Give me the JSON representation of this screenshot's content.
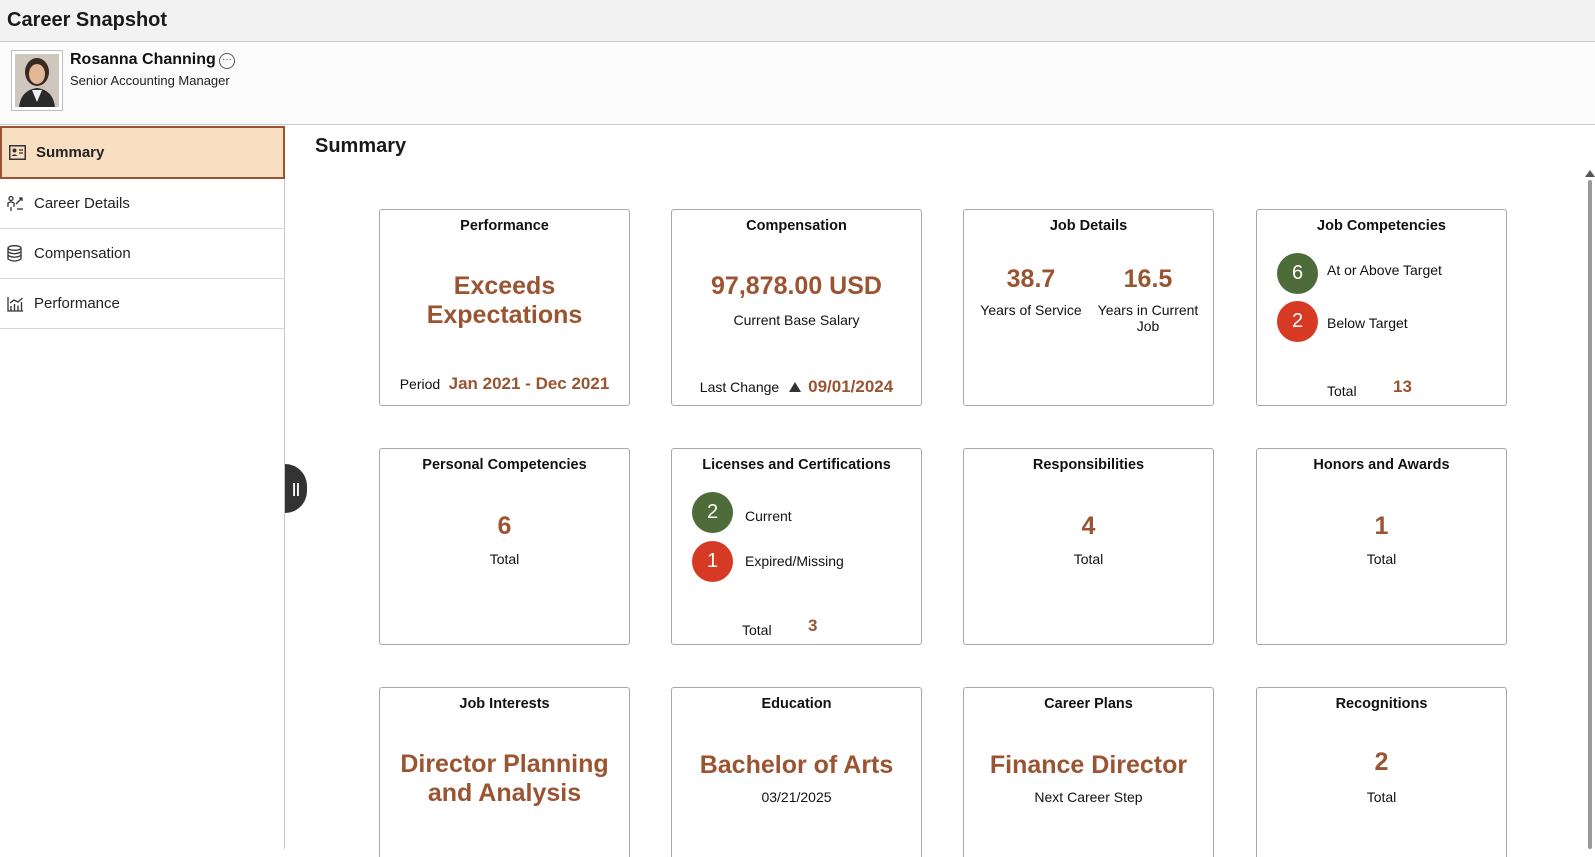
{
  "app": {
    "title": "Career Snapshot"
  },
  "person": {
    "name": "Rosanna Channing",
    "job_title": "Senior Accounting Manager"
  },
  "sidebar": {
    "items": [
      {
        "label": "Summary",
        "icon": "person-card-icon",
        "active": true
      },
      {
        "label": "Career Details",
        "icon": "career-path-icon",
        "active": false
      },
      {
        "label": "Compensation",
        "icon": "database-coins-icon",
        "active": false
      },
      {
        "label": "Performance",
        "icon": "chart-icon",
        "active": false
      }
    ]
  },
  "main": {
    "title": "Summary"
  },
  "tiles": {
    "performance": {
      "title": "Performance",
      "rating_line1": "Exceeds",
      "rating_line2": "Expectations",
      "period_label": "Period",
      "period_value": "Jan 2021 - Dec 2021"
    },
    "compensation": {
      "title": "Compensation",
      "amount": "97,878.00 USD",
      "amount_label": "Current Base Salary",
      "last_change_label": "Last Change",
      "last_change_date": "09/01/2024"
    },
    "job_details": {
      "title": "Job Details",
      "years_service": "38.7",
      "years_service_label": "Years of Service",
      "years_job": "16.5",
      "years_job_label": "Years in Current Job"
    },
    "job_competencies": {
      "title": "Job Competencies",
      "above_count": "6",
      "above_label": "At or Above Target",
      "below_count": "2",
      "below_label": "Below Target",
      "total_label": "Total",
      "total": "13"
    },
    "personal_competencies": {
      "title": "Personal Competencies",
      "count": "6",
      "label": "Total"
    },
    "licenses": {
      "title": "Licenses and Certifications",
      "current_count": "2",
      "current_label": "Current",
      "expired_count": "1",
      "expired_label": "Expired/Missing",
      "total_label": "Total",
      "total": "3"
    },
    "responsibilities": {
      "title": "Responsibilities",
      "count": "4",
      "label": "Total"
    },
    "honors": {
      "title": "Honors and Awards",
      "count": "1",
      "label": "Total"
    },
    "job_interests": {
      "title": "Job Interests",
      "line1": "Director Planning",
      "line2": "and Analysis"
    },
    "education": {
      "title": "Education",
      "degree": "Bachelor of Arts",
      "date": "03/21/2025"
    },
    "career_plans": {
      "title": "Career Plans",
      "plan": "Finance Director",
      "label": "Next Career Step"
    },
    "recognitions": {
      "title": "Recognitions",
      "count": "2",
      "label": "Total"
    }
  },
  "colors": {
    "accent": "#9b5431",
    "active_nav_bg": "#f8dfc2",
    "green": "#4e6b3a",
    "red": "#d63a25"
  }
}
